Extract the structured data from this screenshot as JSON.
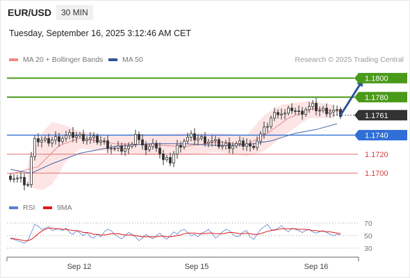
{
  "header": {
    "pair": "EUR/USD",
    "timeframe": "30 MIN",
    "datetime": "Tuesday, September 16, 2025 3:12:46 AM CET"
  },
  "legend": {
    "ma20_bb": {
      "label": "MA 20 + Bollinger Bands",
      "color": "#f08a84"
    },
    "ma50": {
      "label": "MA 50",
      "color": "#2c5596"
    },
    "credit": "Research © 2025 Trading Central"
  },
  "rsi_legend": {
    "rsi": {
      "label": "RSI",
      "color": "#5b80d0"
    },
    "ma9": {
      "label": "9MA",
      "color": "#e01818"
    }
  },
  "chart_data": {
    "type": "candlestick",
    "yrange": [
      1.1676,
      1.1812
    ],
    "x_ticks": [
      "Sep 12",
      "Sep 15",
      "Sep 16"
    ],
    "levels": [
      {
        "label": "1.1800",
        "value": 1.18,
        "kind": "resistance",
        "color": "#4a9a1a"
      },
      {
        "label": "1.1780",
        "value": 1.178,
        "kind": "resistance",
        "color": "#4a9a1a"
      },
      {
        "label": "1.1761",
        "value": 1.1761,
        "kind": "current",
        "color": "#333333"
      },
      {
        "label": "1.1740",
        "value": 1.174,
        "kind": "pivot",
        "color": "#2f6fd6"
      },
      {
        "label": "1.1720",
        "value": 1.172,
        "kind": "support",
        "color": "#e06a6a"
      },
      {
        "label": "1.1700",
        "value": 1.17,
        "kind": "support",
        "color": "#e06a6a"
      }
    ],
    "price_path": [
      {
        "x": 0,
        "y": 1.1697
      },
      {
        "x": 3,
        "y": 1.1692
      },
      {
        "x": 5,
        "y": 1.1688
      },
      {
        "x": 6,
        "y": 1.1715
      },
      {
        "x": 7,
        "y": 1.174
      },
      {
        "x": 8,
        "y": 1.1734
      },
      {
        "x": 10,
        "y": 1.1733
      },
      {
        "x": 14,
        "y": 1.1737
      },
      {
        "x": 18,
        "y": 1.174
      },
      {
        "x": 22,
        "y": 1.1737
      },
      {
        "x": 26,
        "y": 1.1734
      },
      {
        "x": 30,
        "y": 1.1725
      },
      {
        "x": 34,
        "y": 1.1726
      },
      {
        "x": 36,
        "y": 1.1742
      },
      {
        "x": 38,
        "y": 1.1726
      },
      {
        "x": 42,
        "y": 1.173
      },
      {
        "x": 44,
        "y": 1.1713
      },
      {
        "x": 46,
        "y": 1.1713
      },
      {
        "x": 48,
        "y": 1.1727
      },
      {
        "x": 50,
        "y": 1.1735
      },
      {
        "x": 52,
        "y": 1.1738
      },
      {
        "x": 55,
        "y": 1.1736
      },
      {
        "x": 58,
        "y": 1.1733
      },
      {
        "x": 61,
        "y": 1.1729
      },
      {
        "x": 65,
        "y": 1.173
      },
      {
        "x": 68,
        "y": 1.1731
      },
      {
        "x": 69,
        "y": 1.1726
      },
      {
        "x": 71,
        "y": 1.1735
      },
      {
        "x": 73,
        "y": 1.1745
      },
      {
        "x": 75,
        "y": 1.1758
      },
      {
        "x": 77,
        "y": 1.1765
      },
      {
        "x": 79,
        "y": 1.1762
      },
      {
        "x": 81,
        "y": 1.1768
      },
      {
        "x": 83,
        "y": 1.1763
      },
      {
        "x": 85,
        "y": 1.1768
      },
      {
        "x": 87,
        "y": 1.177
      },
      {
        "x": 89,
        "y": 1.1766
      },
      {
        "x": 91,
        "y": 1.1766
      },
      {
        "x": 93,
        "y": 1.1765
      },
      {
        "x": 95,
        "y": 1.1762
      }
    ],
    "ma20": [
      {
        "x": 0,
        "y": 1.1699
      },
      {
        "x": 8,
        "y": 1.1707
      },
      {
        "x": 14,
        "y": 1.1729
      },
      {
        "x": 20,
        "y": 1.1737
      },
      {
        "x": 30,
        "y": 1.1731
      },
      {
        "x": 40,
        "y": 1.173
      },
      {
        "x": 50,
        "y": 1.1728
      },
      {
        "x": 60,
        "y": 1.1733
      },
      {
        "x": 68,
        "y": 1.173
      },
      {
        "x": 74,
        "y": 1.1742
      },
      {
        "x": 80,
        "y": 1.1758
      },
      {
        "x": 87,
        "y": 1.1768
      },
      {
        "x": 95,
        "y": 1.1765
      }
    ],
    "bb_upper": [
      {
        "x": 5,
        "y": 1.171
      },
      {
        "x": 9,
        "y": 1.1742
      },
      {
        "x": 12,
        "y": 1.1754
      },
      {
        "x": 16,
        "y": 1.175
      },
      {
        "x": 20,
        "y": 1.1744
      },
      {
        "x": 30,
        "y": 1.1739
      },
      {
        "x": 40,
        "y": 1.1741
      },
      {
        "x": 50,
        "y": 1.1742
      },
      {
        "x": 60,
        "y": 1.1742
      },
      {
        "x": 68,
        "y": 1.174
      },
      {
        "x": 73,
        "y": 1.1761
      },
      {
        "x": 78,
        "y": 1.1772
      },
      {
        "x": 86,
        "y": 1.1776
      },
      {
        "x": 93,
        "y": 1.1772
      }
    ],
    "bb_lower": [
      {
        "x": 5,
        "y": 1.1686
      },
      {
        "x": 9,
        "y": 1.1682
      },
      {
        "x": 12,
        "y": 1.1688
      },
      {
        "x": 16,
        "y": 1.1712
      },
      {
        "x": 20,
        "y": 1.1726
      },
      {
        "x": 30,
        "y": 1.1722
      },
      {
        "x": 40,
        "y": 1.1719
      },
      {
        "x": 50,
        "y": 1.1719
      },
      {
        "x": 60,
        "y": 1.1722
      },
      {
        "x": 68,
        "y": 1.1718
      },
      {
        "x": 73,
        "y": 1.1723
      },
      {
        "x": 78,
        "y": 1.1738
      },
      {
        "x": 86,
        "y": 1.1758
      },
      {
        "x": 93,
        "y": 1.1758
      }
    ],
    "ma50": [
      {
        "x": 0,
        "y": 1.1704
      },
      {
        "x": 6,
        "y": 1.17
      },
      {
        "x": 12,
        "y": 1.171
      },
      {
        "x": 20,
        "y": 1.1721
      },
      {
        "x": 30,
        "y": 1.1728
      },
      {
        "x": 40,
        "y": 1.1731
      },
      {
        "x": 50,
        "y": 1.1731
      },
      {
        "x": 60,
        "y": 1.1729
      },
      {
        "x": 68,
        "y": 1.173
      },
      {
        "x": 75,
        "y": 1.1734
      },
      {
        "x": 82,
        "y": 1.1742
      },
      {
        "x": 88,
        "y": 1.1746
      },
      {
        "x": 94,
        "y": 1.1752
      }
    ],
    "forecast_arrow": {
      "from": {
        "x": 95,
        "y": 1.1761
      },
      "to": {
        "x": 101,
        "y": 1.18
      }
    },
    "rsi": {
      "levels": [
        70,
        50,
        30
      ],
      "yrange": [
        20,
        80
      ],
      "rsi_values": [
        45,
        44,
        42,
        40,
        38,
        42,
        55,
        68,
        65,
        60,
        62,
        64,
        58,
        60,
        61,
        58,
        62,
        55,
        52,
        58,
        54,
        50,
        55,
        48,
        46,
        52,
        48,
        56,
        60,
        58,
        52,
        48,
        45,
        50,
        55,
        52,
        48,
        42,
        46,
        52,
        48,
        45,
        50,
        54,
        48,
        44,
        50,
        56,
        52,
        58,
        60,
        55,
        50,
        52,
        48,
        54,
        56,
        60,
        54,
        46,
        50,
        56,
        60,
        58,
        52,
        48,
        50,
        56,
        58,
        48,
        44,
        52,
        60,
        64,
        68,
        60,
        58,
        62,
        66,
        60,
        56,
        62,
        60,
        58,
        55,
        58,
        60,
        56,
        54,
        56,
        58,
        55,
        52,
        50,
        52,
        51
      ],
      "ma9_values": [
        46,
        45,
        44,
        43,
        42,
        42,
        44,
        48,
        53,
        57,
        60,
        62,
        62,
        61,
        61,
        60,
        60,
        59,
        58,
        58,
        57,
        55,
        55,
        54,
        52,
        52,
        51,
        51,
        52,
        53,
        53,
        53,
        52,
        51,
        51,
        51,
        50,
        49,
        48,
        48,
        48,
        48,
        48,
        49,
        49,
        48,
        48,
        49,
        50,
        51,
        53,
        54,
        54,
        54,
        53,
        53,
        53,
        54,
        54,
        53,
        53,
        53,
        54,
        55,
        55,
        54,
        53,
        53,
        54,
        53,
        52,
        52,
        53,
        55,
        57,
        58,
        59,
        60,
        61,
        61,
        61,
        61,
        61,
        60,
        60,
        60,
        59,
        58,
        58,
        57,
        57,
        56,
        56,
        55,
        54,
        53
      ]
    }
  }
}
